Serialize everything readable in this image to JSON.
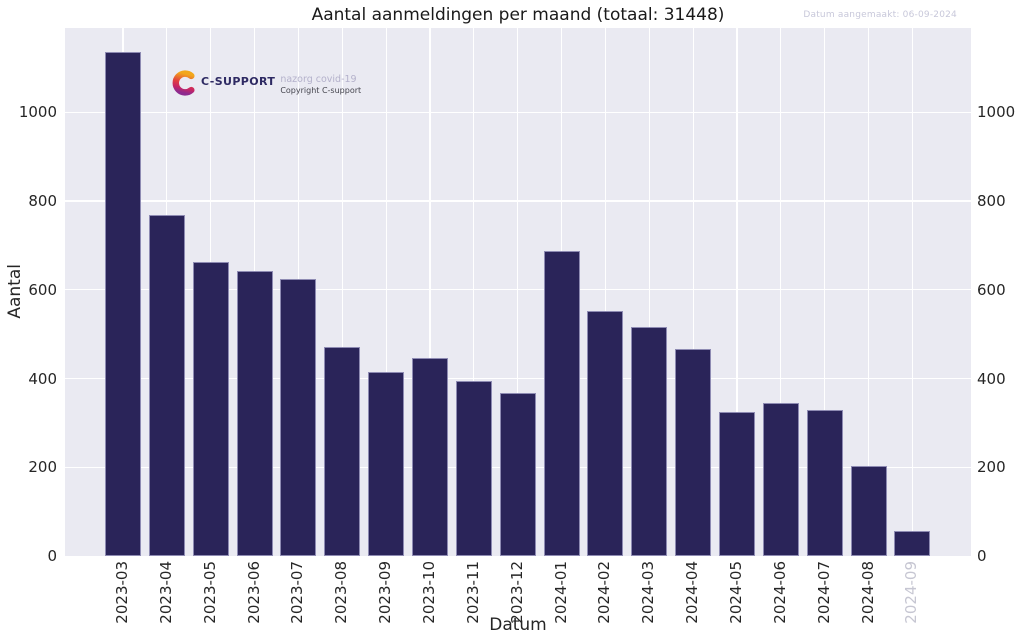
{
  "header": {
    "annotation": "Datum aangemaakt: 06-09-2024"
  },
  "logo": {
    "brand": "C-SUPPORT",
    "tagline": "nazorg covid-19",
    "copyright": "Copyright C-support",
    "gradient": [
      "#f2a71b",
      "#e2403f",
      "#c62565",
      "#8d2a8f"
    ]
  },
  "chart_data": {
    "type": "bar",
    "title": "Aantal aanmeldingen per maand (totaal: 31448)",
    "total": 31448,
    "xlabel": "Datum",
    "ylabel": "Aantal",
    "ylim": [
      0,
      1190
    ],
    "yticks": [
      0,
      200,
      400,
      600,
      800,
      1000
    ],
    "grid": true,
    "legend": "none",
    "plot_bg": "#eaeaf2",
    "grid_color": "#ffffff",
    "bar_color": "#2a2459",
    "bar_edge_color": "#8e8bb3",
    "tick_color": "#262626",
    "muted_tick_color": "#c6c6d2",
    "categories": [
      "2023-03",
      "2023-04",
      "2023-05",
      "2023-06",
      "2023-07",
      "2023-08",
      "2023-09",
      "2023-10",
      "2023-11",
      "2023-12",
      "2024-01",
      "2024-02",
      "2024-03",
      "2024-04",
      "2024-05",
      "2024-06",
      "2024-07",
      "2024-08",
      "2024-09"
    ],
    "values": [
      1136,
      769,
      663,
      642,
      624,
      470,
      415,
      446,
      394,
      368,
      688,
      552,
      517,
      466,
      324,
      345,
      330,
      202,
      57
    ],
    "muted_categories": [
      "2024-09"
    ]
  }
}
